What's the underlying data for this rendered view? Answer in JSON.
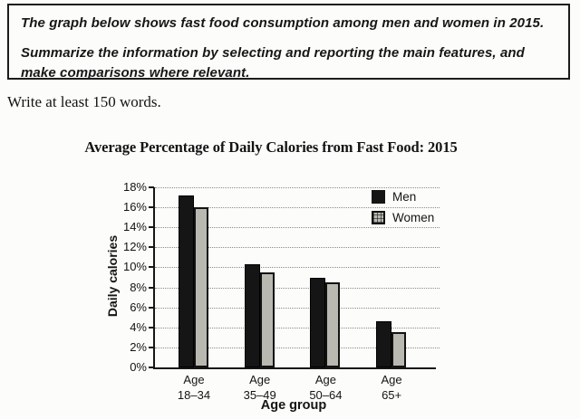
{
  "instructions": {
    "paragraph1": "The graph below shows fast food consumption among men and women in 2015.",
    "paragraph2": "Summarize the information by selecting and reporting the main features, and make comparisons where relevant."
  },
  "note": "Write at least 150 words.",
  "chart_data": {
    "type": "bar",
    "title": "Average Percentage of Daily Calories from Fast Food: 2015",
    "xlabel": "Age group",
    "ylabel": "Daily calories",
    "categories": [
      [
        "Age",
        "18–34"
      ],
      [
        "Age",
        "35–49"
      ],
      [
        "Age",
        "50–64"
      ],
      [
        "Age",
        "65+"
      ]
    ],
    "series": [
      {
        "name": "Men",
        "color": "#151515",
        "pattern": "solid",
        "values": [
          17.2,
          10.3,
          9.0,
          4.6
        ]
      },
      {
        "name": "Women",
        "color": "#b9b9b1",
        "pattern": "crosshatch",
        "values": [
          16.0,
          9.5,
          8.5,
          3.5
        ]
      }
    ],
    "ylim": [
      0,
      18
    ],
    "ytick_step": 2,
    "ytick_suffix": "%",
    "grid": "dotted horizontal",
    "legend_position": "top-right"
  }
}
